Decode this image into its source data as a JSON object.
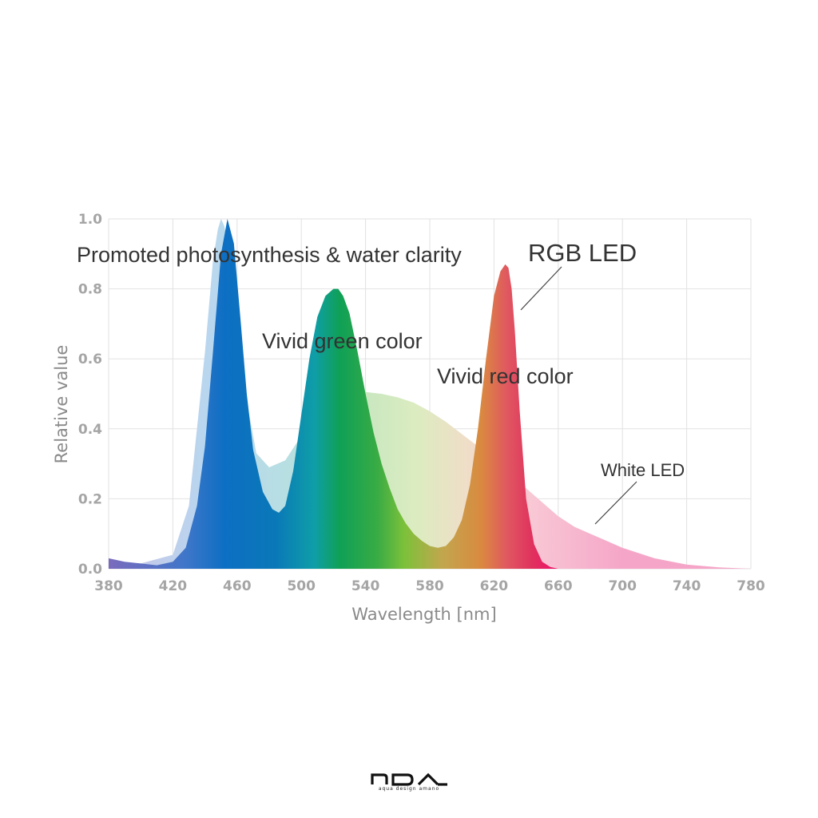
{
  "chart_data": {
    "type": "area",
    "xlabel": "Wavelength [nm]",
    "ylabel": "Relative value",
    "xlim": [
      380,
      780
    ],
    "ylim": [
      0,
      1.0
    ],
    "x_ticks": [
      380,
      420,
      460,
      500,
      540,
      580,
      620,
      660,
      700,
      740,
      780
    ],
    "y_ticks": [
      "0.0",
      "0.2",
      "0.4",
      "0.6",
      "0.8",
      "1.0"
    ],
    "grid": true,
    "series": [
      {
        "name": "White LED",
        "x": [
          380,
          400,
          420,
          430,
          440,
          445,
          448,
          450,
          452,
          456,
          460,
          466,
          472,
          480,
          490,
          500,
          510,
          520,
          530,
          540,
          550,
          560,
          570,
          580,
          590,
          600,
          610,
          620,
          630,
          640,
          650,
          660,
          670,
          680,
          700,
          720,
          740,
          760,
          780
        ],
        "y": [
          0.02,
          0.015,
          0.04,
          0.18,
          0.62,
          0.88,
          0.97,
          1.0,
          0.98,
          0.9,
          0.72,
          0.48,
          0.33,
          0.29,
          0.31,
          0.38,
          0.44,
          0.48,
          0.5,
          0.505,
          0.5,
          0.49,
          0.475,
          0.45,
          0.42,
          0.385,
          0.35,
          0.31,
          0.27,
          0.23,
          0.19,
          0.15,
          0.12,
          0.1,
          0.06,
          0.03,
          0.012,
          0.004,
          0.0
        ]
      },
      {
        "name": "RGB LED",
        "x": [
          380,
          390,
          400,
          410,
          420,
          428,
          435,
          440,
          445,
          450,
          454,
          458,
          462,
          466,
          470,
          476,
          482,
          486,
          490,
          495,
          500,
          505,
          510,
          515,
          520,
          523,
          526,
          530,
          535,
          540,
          545,
          550,
          555,
          560,
          565,
          570,
          575,
          580,
          585,
          590,
          595,
          600,
          605,
          610,
          615,
          620,
          624,
          627,
          629,
          631,
          633,
          636,
          640,
          645,
          650,
          655,
          660,
          670,
          780
        ],
        "y": [
          0.03,
          0.02,
          0.015,
          0.01,
          0.02,
          0.06,
          0.18,
          0.35,
          0.62,
          0.9,
          1.0,
          0.93,
          0.72,
          0.5,
          0.34,
          0.22,
          0.17,
          0.16,
          0.18,
          0.28,
          0.44,
          0.6,
          0.72,
          0.78,
          0.8,
          0.8,
          0.78,
          0.73,
          0.62,
          0.5,
          0.39,
          0.3,
          0.23,
          0.17,
          0.13,
          0.1,
          0.08,
          0.065,
          0.06,
          0.065,
          0.09,
          0.14,
          0.24,
          0.4,
          0.6,
          0.78,
          0.85,
          0.87,
          0.86,
          0.8,
          0.68,
          0.45,
          0.2,
          0.07,
          0.02,
          0.005,
          0.0,
          0.0,
          0.0
        ]
      }
    ],
    "annotations": [
      "Promoted photosynthesis & water clarity",
      "RGB LED",
      "Vivid green color",
      "Vivid red color",
      "White LED"
    ],
    "colors": {
      "violet": "#7a6bbd",
      "blue": "#0d6fc3",
      "cyan": "#0f9ea8",
      "green": "#0fa056",
      "yellow_green": "#7cc13a",
      "orange": "#d98a40",
      "red": "#e0315e",
      "magenta": "#f00f6a",
      "white_led_pink": "#f5a6c8",
      "grid": "#e2e2e2"
    }
  },
  "brand": {
    "logo_icon": "ada-logo-icon",
    "tagline": "aqua design amano"
  }
}
